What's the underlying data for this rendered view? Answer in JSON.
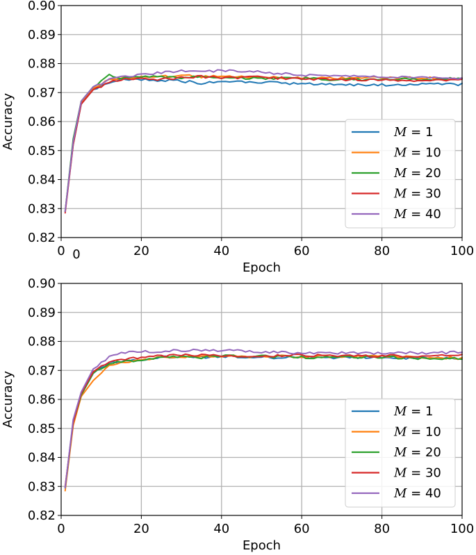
{
  "chart_data": [
    {
      "type": "line",
      "xlabel": "Epoch",
      "ylabel": "Accuracy",
      "xlim": [
        0,
        100
      ],
      "ylim": [
        0.82,
        0.9
      ],
      "xticks": [
        "0",
        "20",
        "40",
        "60",
        "80",
        "100"
      ],
      "yticks": [
        "0.82",
        "0.83",
        "0.84",
        "0.85",
        "0.86",
        "0.87",
        "0.88",
        "0.89",
        "0.90"
      ],
      "extra_label": "0",
      "grid": true,
      "legend_position": "lower-right",
      "series": [
        {
          "name": "M = 1",
          "math": "M",
          "num": "1",
          "color": "#1f77b4",
          "points": [
            [
              1,
              0.829
            ],
            [
              3,
              0.852
            ],
            [
              5,
              0.866
            ],
            [
              8,
              0.871
            ],
            [
              12,
              0.8735
            ],
            [
              15,
              0.8745
            ],
            [
              20,
              0.8745
            ],
            [
              25,
              0.8742
            ],
            [
              30,
              0.874
            ],
            [
              35,
              0.8732
            ],
            [
              40,
              0.8738
            ],
            [
              50,
              0.8735
            ],
            [
              60,
              0.873
            ],
            [
              70,
              0.8728
            ],
            [
              80,
              0.8726
            ],
            [
              90,
              0.8728
            ],
            [
              100,
              0.8728
            ]
          ]
        },
        {
          "name": "M = 10",
          "math": "M",
          "num": "10",
          "color": "#ff7f0e",
          "points": [
            [
              1,
              0.829
            ],
            [
              3,
              0.853
            ],
            [
              5,
              0.8665
            ],
            [
              8,
              0.8715
            ],
            [
              12,
              0.8745
            ],
            [
              15,
              0.875
            ],
            [
              20,
              0.8755
            ],
            [
              25,
              0.8755
            ],
            [
              30,
              0.8758
            ],
            [
              35,
              0.8755
            ],
            [
              40,
              0.8755
            ],
            [
              50,
              0.8752
            ],
            [
              60,
              0.875
            ],
            [
              70,
              0.875
            ],
            [
              80,
              0.8752
            ],
            [
              90,
              0.875
            ],
            [
              100,
              0.8748
            ]
          ]
        },
        {
          "name": "M = 20",
          "math": "M",
          "num": "20",
          "color": "#2ca02c",
          "points": [
            [
              1,
              0.829
            ],
            [
              3,
              0.854
            ],
            [
              5,
              0.867
            ],
            [
              8,
              0.872
            ],
            [
              12,
              0.876
            ],
            [
              15,
              0.875
            ],
            [
              20,
              0.8755
            ],
            [
              25,
              0.8755
            ],
            [
              30,
              0.8752
            ],
            [
              35,
              0.8755
            ],
            [
              40,
              0.8752
            ],
            [
              50,
              0.8748
            ],
            [
              60,
              0.8748
            ],
            [
              70,
              0.8745
            ],
            [
              80,
              0.8745
            ],
            [
              90,
              0.8745
            ],
            [
              100,
              0.8748
            ]
          ]
        },
        {
          "name": "M = 30",
          "math": "M",
          "num": "30",
          "color": "#d62728",
          "points": [
            [
              1,
              0.8285
            ],
            [
              3,
              0.852
            ],
            [
              5,
              0.866
            ],
            [
              8,
              0.871
            ],
            [
              12,
              0.8735
            ],
            [
              15,
              0.8745
            ],
            [
              20,
              0.875
            ],
            [
              25,
              0.8745
            ],
            [
              30,
              0.875
            ],
            [
              35,
              0.8755
            ],
            [
              40,
              0.8752
            ],
            [
              50,
              0.8752
            ],
            [
              60,
              0.8748
            ],
            [
              70,
              0.8745
            ],
            [
              80,
              0.8742
            ],
            [
              90,
              0.8742
            ],
            [
              100,
              0.8745
            ]
          ]
        },
        {
          "name": "M = 40",
          "math": "M",
          "num": "40",
          "color": "#9467bd",
          "points": [
            [
              1,
              0.829
            ],
            [
              3,
              0.853
            ],
            [
              5,
              0.867
            ],
            [
              8,
              0.872
            ],
            [
              12,
              0.8745
            ],
            [
              15,
              0.8755
            ],
            [
              20,
              0.876
            ],
            [
              25,
              0.877
            ],
            [
              30,
              0.8775
            ],
            [
              35,
              0.8775
            ],
            [
              40,
              0.8775
            ],
            [
              50,
              0.877
            ],
            [
              60,
              0.876
            ],
            [
              70,
              0.8758
            ],
            [
              80,
              0.8755
            ],
            [
              90,
              0.8752
            ],
            [
              100,
              0.875
            ]
          ]
        }
      ]
    },
    {
      "type": "line",
      "xlabel": "Epoch",
      "ylabel": "Accuracy",
      "xlim": [
        0,
        100
      ],
      "ylim": [
        0.82,
        0.9
      ],
      "xticks": [
        "0",
        "20",
        "40",
        "60",
        "80",
        "100"
      ],
      "yticks": [
        "0.82",
        "0.83",
        "0.84",
        "0.85",
        "0.86",
        "0.87",
        "0.88",
        "0.89",
        "0.90"
      ],
      "extra_label": "",
      "grid": true,
      "legend_position": "lower-right",
      "series": [
        {
          "name": "M = 1",
          "math": "M",
          "num": "1",
          "color": "#1f77b4",
          "points": [
            [
              1,
              0.8295
            ],
            [
              3,
              0.852
            ],
            [
              5,
              0.8615
            ],
            [
              8,
              0.869
            ],
            [
              12,
              0.8725
            ],
            [
              15,
              0.873
            ],
            [
              20,
              0.8735
            ],
            [
              25,
              0.8745
            ],
            [
              30,
              0.8745
            ],
            [
              35,
              0.8745
            ],
            [
              40,
              0.8748
            ],
            [
              50,
              0.8745
            ],
            [
              60,
              0.8745
            ],
            [
              70,
              0.8745
            ],
            [
              80,
              0.8745
            ],
            [
              90,
              0.8742
            ],
            [
              100,
              0.8742
            ]
          ]
        },
        {
          "name": "M = 10",
          "math": "M",
          "num": "10",
          "color": "#ff7f0e",
          "points": [
            [
              1,
              0.8285
            ],
            [
              3,
              0.851
            ],
            [
              5,
              0.861
            ],
            [
              8,
              0.8665
            ],
            [
              12,
              0.8715
            ],
            [
              15,
              0.873
            ],
            [
              20,
              0.8735
            ],
            [
              25,
              0.8745
            ],
            [
              30,
              0.8748
            ],
            [
              35,
              0.8748
            ],
            [
              40,
              0.875
            ],
            [
              50,
              0.8748
            ],
            [
              60,
              0.8748
            ],
            [
              70,
              0.8748
            ],
            [
              80,
              0.8748
            ],
            [
              90,
              0.8745
            ],
            [
              100,
              0.8742
            ]
          ]
        },
        {
          "name": "M = 20",
          "math": "M",
          "num": "20",
          "color": "#2ca02c",
          "points": [
            [
              1,
              0.8295
            ],
            [
              3,
              0.852
            ],
            [
              5,
              0.8615
            ],
            [
              8,
              0.869
            ],
            [
              12,
              0.8725
            ],
            [
              15,
              0.873
            ],
            [
              20,
              0.8735
            ],
            [
              25,
              0.8745
            ],
            [
              30,
              0.8748
            ],
            [
              35,
              0.8745
            ],
            [
              40,
              0.875
            ],
            [
              50,
              0.8748
            ],
            [
              60,
              0.8745
            ],
            [
              70,
              0.8745
            ],
            [
              80,
              0.8745
            ],
            [
              90,
              0.8742
            ],
            [
              100,
              0.8742
            ]
          ]
        },
        {
          "name": "M = 30",
          "math": "M",
          "num": "30",
          "color": "#d62728",
          "points": [
            [
              1,
              0.83
            ],
            [
              3,
              0.852
            ],
            [
              5,
              0.862
            ],
            [
              8,
              0.8695
            ],
            [
              12,
              0.873
            ],
            [
              15,
              0.874
            ],
            [
              20,
              0.8742
            ],
            [
              25,
              0.875
            ],
            [
              30,
              0.8752
            ],
            [
              35,
              0.8752
            ],
            [
              40,
              0.8752
            ],
            [
              50,
              0.875
            ],
            [
              60,
              0.8752
            ],
            [
              70,
              0.875
            ],
            [
              80,
              0.875
            ],
            [
              90,
              0.875
            ],
            [
              100,
              0.8752
            ]
          ]
        },
        {
          "name": "M = 40",
          "math": "M",
          "num": "40",
          "color": "#9467bd",
          "points": [
            [
              1,
              0.8295
            ],
            [
              3,
              0.853
            ],
            [
              5,
              0.8625
            ],
            [
              8,
              0.8705
            ],
            [
              12,
              0.8745
            ],
            [
              15,
              0.876
            ],
            [
              20,
              0.8765
            ],
            [
              25,
              0.8765
            ],
            [
              30,
              0.877
            ],
            [
              35,
              0.8768
            ],
            [
              40,
              0.877
            ],
            [
              50,
              0.8765
            ],
            [
              60,
              0.876
            ],
            [
              70,
              0.876
            ],
            [
              80,
              0.876
            ],
            [
              90,
              0.876
            ],
            [
              100,
              0.8762
            ]
          ]
        }
      ]
    }
  ]
}
